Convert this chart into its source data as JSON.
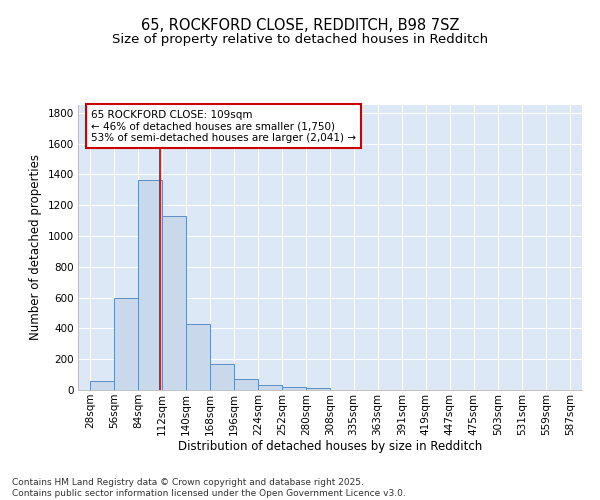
{
  "title": "65, ROCKFORD CLOSE, REDDITCH, B98 7SZ",
  "subtitle": "Size of property relative to detached houses in Redditch",
  "xlabel": "Distribution of detached houses by size in Redditch",
  "ylabel": "Number of detached properties",
  "bar_edges": [
    28,
    56,
    84,
    112,
    140,
    168,
    196,
    224,
    252,
    280,
    308,
    335,
    363,
    391,
    419,
    447,
    475,
    503,
    531,
    559,
    587
  ],
  "bar_heights": [
    60,
    600,
    1360,
    1130,
    430,
    170,
    70,
    35,
    20,
    15,
    0,
    0,
    0,
    0,
    0,
    0,
    0,
    0,
    0,
    0
  ],
  "bar_color": "#c9d9eb",
  "bar_edge_color": "#5b8ec4",
  "bar_linewidth": 0.7,
  "vline_x": 109,
  "vline_color": "#cc0000",
  "vline_linewidth": 1.2,
  "annotation_text": "65 ROCKFORD CLOSE: 109sqm\n← 46% of detached houses are smaller (1,750)\n53% of semi-detached houses are larger (2,041) →",
  "annotation_fontsize": 7.5,
  "annotation_box_color": "#ffffff",
  "annotation_box_edge": "#cc0000",
  "ylim": [
    0,
    1850
  ],
  "yticks": [
    0,
    200,
    400,
    600,
    800,
    1000,
    1200,
    1400,
    1600,
    1800
  ],
  "fig_bg_color": "#ffffff",
  "plot_bg_color": "#dce8f5",
  "grid_color": "#ffffff",
  "title_fontsize": 10.5,
  "subtitle_fontsize": 9.5,
  "axis_label_fontsize": 8.5,
  "tick_fontsize": 7.5,
  "footer_text": "Contains HM Land Registry data © Crown copyright and database right 2025.\nContains public sector information licensed under the Open Government Licence v3.0.",
  "footer_fontsize": 6.5
}
